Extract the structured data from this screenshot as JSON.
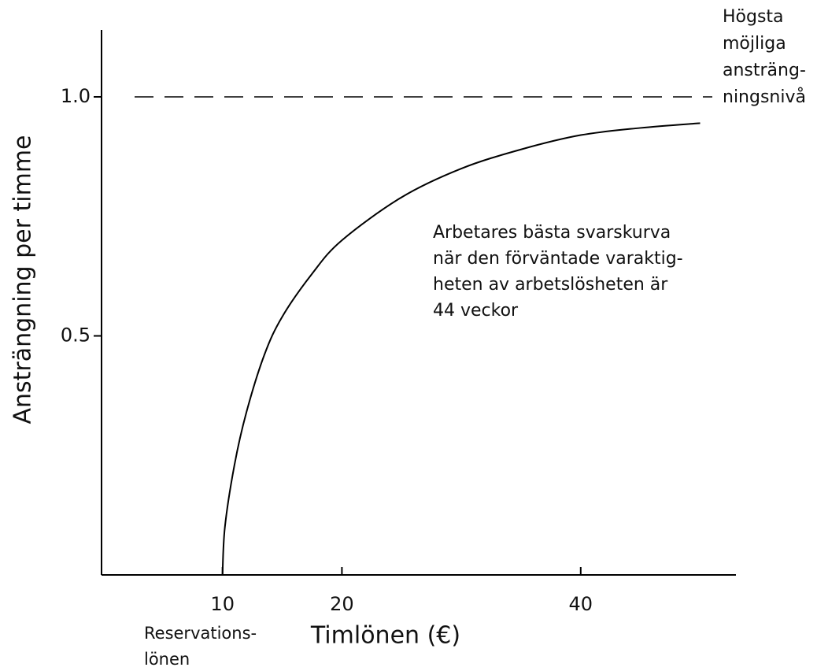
{
  "chart_data": {
    "type": "line",
    "x_label": "Timlönen (€)",
    "y_label": "Ansträngning per timme",
    "xlim": [
      0,
      53
    ],
    "ylim": [
      0,
      1.14
    ],
    "xticks": [
      10,
      20,
      40
    ],
    "yticks": [
      0.5,
      {
        "value": 1.0,
        "label": "1.0"
      }
    ],
    "x": [
      10,
      10.2,
      11,
      12,
      13.5,
      15,
      17.5,
      20,
      25,
      30,
      35,
      40,
      45,
      50
    ],
    "series": [
      {
        "color": "#000000",
        "values": [
          0,
          0.1,
          0.23,
          0.34,
          0.46,
          0.54,
          0.63,
          0.7,
          0.79,
          0.85,
          0.89,
          0.92,
          0.935,
          0.945
        ]
      }
    ],
    "reference_line": {
      "value": 1.0,
      "label_lines": [
        "Högsta",
        "möjliga",
        "ansträng-",
        "ningsnivå"
      ]
    },
    "annotation_lines": [
      "Arbetares bästa svarskurva",
      "när den förväntade varaktig-",
      "heten av arbetslösheten är",
      "44 veckor"
    ],
    "x_tick_note_lines": [
      "Reservations-",
      "lönen"
    ]
  }
}
